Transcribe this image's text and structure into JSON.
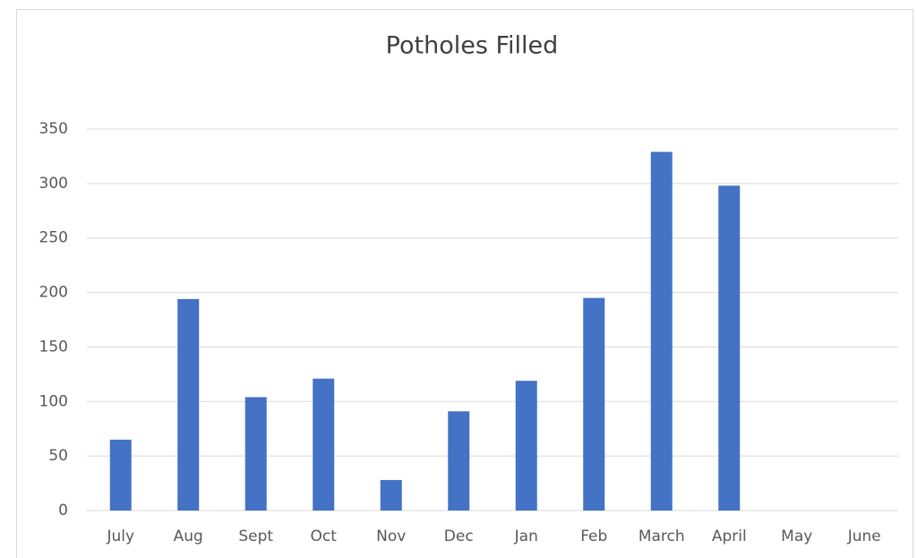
{
  "chart_data": {
    "type": "bar",
    "title": "Potholes Filled",
    "categories": [
      "July",
      "Aug",
      "Sept",
      "Oct",
      "Nov",
      "Dec",
      "Jan",
      "Feb",
      "March",
      "April",
      "May",
      "June"
    ],
    "values": [
      65,
      194,
      104,
      121,
      28,
      91,
      119,
      195,
      329,
      298,
      null,
      null
    ],
    "color": "#4472c4",
    "ylim": [
      0,
      350
    ],
    "yticks": [
      0,
      50,
      100,
      150,
      200,
      250,
      300,
      350
    ],
    "grid": true
  }
}
